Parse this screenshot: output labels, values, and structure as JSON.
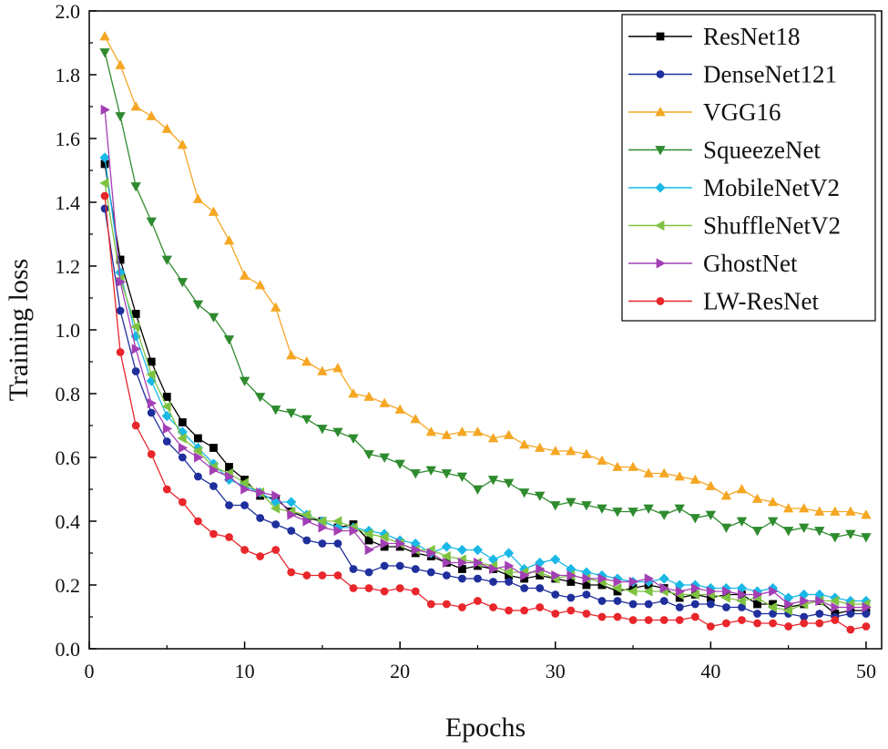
{
  "chart_data": {
    "type": "line",
    "title": "",
    "xlabel": "Epochs",
    "ylabel": "Training loss",
    "xlim": [
      0,
      51
    ],
    "ylim": [
      0,
      2.0
    ],
    "xticks": [
      0,
      10,
      20,
      30,
      40,
      50
    ],
    "xtick_labels": [
      "0",
      "10",
      "20",
      "30",
      "40",
      "50"
    ],
    "yticks": [
      0,
      0.2,
      0.4,
      0.6,
      0.8,
      1.0,
      1.2,
      1.4,
      1.6,
      1.8,
      2.0
    ],
    "ytick_labels": [
      "0.0",
      "0.2",
      "0.4",
      "0.6",
      "0.8",
      "1.0",
      "1.2",
      "1.4",
      "1.6",
      "1.8",
      "2.0"
    ],
    "grid": false,
    "legend_position": "top-right",
    "x": [
      1,
      2,
      3,
      4,
      5,
      6,
      7,
      8,
      9,
      10,
      11,
      12,
      13,
      14,
      15,
      16,
      17,
      18,
      19,
      20,
      21,
      22,
      23,
      24,
      25,
      26,
      27,
      28,
      29,
      30,
      31,
      32,
      33,
      34,
      35,
      36,
      37,
      38,
      39,
      40,
      41,
      42,
      43,
      44,
      45,
      46,
      47,
      48,
      49,
      50
    ],
    "series": [
      {
        "name": "ResNet18",
        "color": "#000000",
        "marker": "square",
        "values": [
          1.52,
          1.22,
          1.05,
          0.9,
          0.79,
          0.71,
          0.66,
          0.63,
          0.57,
          0.53,
          0.48,
          0.47,
          0.43,
          0.41,
          0.4,
          0.38,
          0.39,
          0.34,
          0.32,
          0.32,
          0.3,
          0.29,
          0.27,
          0.25,
          0.26,
          0.25,
          0.23,
          0.22,
          0.23,
          0.22,
          0.21,
          0.2,
          0.2,
          0.18,
          0.19,
          0.2,
          0.19,
          0.16,
          0.17,
          0.16,
          0.17,
          0.17,
          0.14,
          0.14,
          0.13,
          0.14,
          0.15,
          0.11,
          0.12,
          0.12
        ]
      },
      {
        "name": "DenseNet121",
        "color": "#1f2f9c",
        "marker": "circle",
        "values": [
          1.38,
          1.06,
          0.87,
          0.74,
          0.65,
          0.6,
          0.54,
          0.51,
          0.45,
          0.45,
          0.41,
          0.39,
          0.37,
          0.34,
          0.33,
          0.33,
          0.25,
          0.24,
          0.26,
          0.26,
          0.25,
          0.24,
          0.23,
          0.22,
          0.22,
          0.21,
          0.21,
          0.19,
          0.19,
          0.17,
          0.16,
          0.17,
          0.15,
          0.15,
          0.14,
          0.14,
          0.15,
          0.13,
          0.14,
          0.14,
          0.13,
          0.13,
          0.11,
          0.11,
          0.11,
          0.1,
          0.11,
          0.1,
          0.11,
          0.11
        ]
      },
      {
        "name": "VGG16",
        "color": "#f5a623",
        "marker": "triangle-up",
        "values": [
          1.92,
          1.83,
          1.7,
          1.67,
          1.63,
          1.58,
          1.41,
          1.37,
          1.28,
          1.17,
          1.14,
          1.07,
          0.92,
          0.9,
          0.87,
          0.88,
          0.8,
          0.79,
          0.77,
          0.75,
          0.72,
          0.68,
          0.67,
          0.68,
          0.68,
          0.66,
          0.67,
          0.64,
          0.63,
          0.62,
          0.62,
          0.61,
          0.59,
          0.57,
          0.57,
          0.55,
          0.55,
          0.54,
          0.53,
          0.51,
          0.48,
          0.5,
          0.47,
          0.46,
          0.44,
          0.44,
          0.43,
          0.43,
          0.43,
          0.42
        ]
      },
      {
        "name": "SqueezeNet",
        "color": "#2e8b2e",
        "marker": "triangle-down",
        "values": [
          1.87,
          1.67,
          1.45,
          1.34,
          1.22,
          1.15,
          1.08,
          1.04,
          0.97,
          0.84,
          0.79,
          0.75,
          0.74,
          0.72,
          0.69,
          0.68,
          0.66,
          0.61,
          0.6,
          0.58,
          0.55,
          0.56,
          0.55,
          0.54,
          0.5,
          0.53,
          0.52,
          0.49,
          0.48,
          0.45,
          0.46,
          0.45,
          0.44,
          0.43,
          0.43,
          0.44,
          0.42,
          0.44,
          0.41,
          0.42,
          0.38,
          0.4,
          0.37,
          0.4,
          0.37,
          0.38,
          0.37,
          0.35,
          0.36,
          0.35
        ]
      },
      {
        "name": "MobileNetV2",
        "color": "#19b8e6",
        "marker": "diamond",
        "values": [
          1.54,
          1.18,
          0.98,
          0.84,
          0.73,
          0.68,
          0.63,
          0.58,
          0.53,
          0.51,
          0.49,
          0.46,
          0.46,
          0.42,
          0.4,
          0.38,
          0.38,
          0.37,
          0.36,
          0.34,
          0.33,
          0.3,
          0.32,
          0.31,
          0.31,
          0.28,
          0.3,
          0.25,
          0.27,
          0.28,
          0.25,
          0.24,
          0.23,
          0.22,
          0.21,
          0.21,
          0.22,
          0.2,
          0.2,
          0.19,
          0.19,
          0.19,
          0.18,
          0.19,
          0.16,
          0.17,
          0.17,
          0.16,
          0.15,
          0.15
        ]
      },
      {
        "name": "ShuffleNetV2",
        "color": "#7fc241",
        "marker": "triangle-left",
        "values": [
          1.46,
          1.16,
          1.01,
          0.86,
          0.76,
          0.66,
          0.62,
          0.57,
          0.55,
          0.52,
          0.49,
          0.44,
          0.43,
          0.42,
          0.4,
          0.4,
          0.38,
          0.36,
          0.35,
          0.33,
          0.31,
          0.31,
          0.29,
          0.28,
          0.27,
          0.26,
          0.24,
          0.24,
          0.24,
          0.22,
          0.23,
          0.22,
          0.21,
          0.19,
          0.18,
          0.18,
          0.18,
          0.17,
          0.17,
          0.17,
          0.16,
          0.15,
          0.16,
          0.13,
          0.12,
          0.14,
          0.15,
          0.15,
          0.14,
          0.14
        ]
      },
      {
        "name": "GhostNet",
        "color": "#a33fb5",
        "marker": "triangle-right",
        "values": [
          1.69,
          1.15,
          0.94,
          0.77,
          0.69,
          0.63,
          0.6,
          0.56,
          0.54,
          0.5,
          0.49,
          0.48,
          0.42,
          0.4,
          0.38,
          0.37,
          0.37,
          0.31,
          0.33,
          0.33,
          0.31,
          0.3,
          0.27,
          0.27,
          0.27,
          0.25,
          0.26,
          0.23,
          0.25,
          0.23,
          0.23,
          0.22,
          0.22,
          0.21,
          0.21,
          0.22,
          0.19,
          0.18,
          0.19,
          0.18,
          0.18,
          0.17,
          0.17,
          0.18,
          0.14,
          0.15,
          0.15,
          0.13,
          0.13,
          0.13
        ]
      },
      {
        "name": "LW-ResNet",
        "color": "#e8262b",
        "marker": "circle",
        "values": [
          1.42,
          0.93,
          0.7,
          0.61,
          0.5,
          0.46,
          0.4,
          0.36,
          0.35,
          0.31,
          0.29,
          0.31,
          0.24,
          0.23,
          0.23,
          0.23,
          0.19,
          0.19,
          0.18,
          0.19,
          0.18,
          0.14,
          0.14,
          0.13,
          0.15,
          0.13,
          0.12,
          0.12,
          0.13,
          0.11,
          0.12,
          0.11,
          0.1,
          0.1,
          0.09,
          0.09,
          0.09,
          0.09,
          0.1,
          0.07,
          0.08,
          0.09,
          0.08,
          0.08,
          0.07,
          0.08,
          0.08,
          0.09,
          0.06,
          0.07
        ]
      }
    ]
  }
}
